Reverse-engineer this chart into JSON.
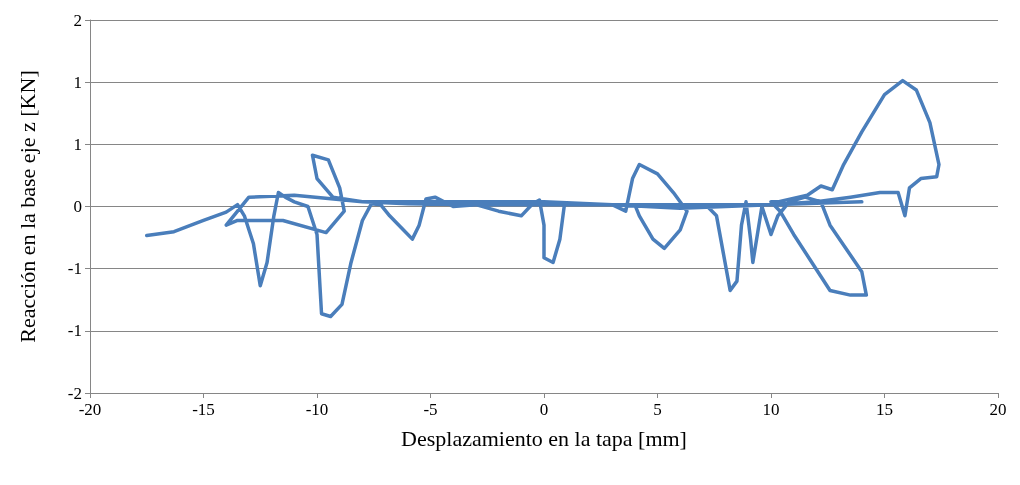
{
  "chart_data": {
    "type": "line",
    "xlabel": "Desplazamiento en la tapa [mm]",
    "ylabel": "Reacción en la base eje z [KN]",
    "xlim": [
      -20,
      20
    ],
    "xticks": [
      -20,
      -15,
      -10,
      -5,
      0,
      5,
      10,
      15,
      20
    ],
    "ylim": [
      -2,
      2
    ],
    "yticks": [
      {
        "value": -2,
        "label": "-2"
      },
      {
        "value": -1.333,
        "label": "-1"
      },
      {
        "value": -0.667,
        "label": "-1"
      },
      {
        "value": 0,
        "label": "0"
      },
      {
        "value": 0.667,
        "label": "1"
      },
      {
        "value": 1.333,
        "label": "1"
      },
      {
        "value": 2,
        "label": "2"
      }
    ],
    "grid": "y",
    "marker": "none",
    "line_style": "solid",
    "series": [
      {
        "color": "#4a7ebb",
        "x": [
          -17.5,
          -16.3,
          -15,
          -14,
          -13.5,
          -13.2,
          -12.8,
          -12.5,
          -12.2,
          -11.9,
          -11.7,
          -11.4,
          -11,
          -10.4,
          -10,
          -9.8,
          -9.4,
          -8.9,
          -8.5,
          -8,
          -7.6,
          -7.2,
          -6.8,
          -6.2,
          -5.8,
          -5.5,
          -5.2,
          -4.8,
          -4,
          -3,
          -2,
          -1,
          -0.5,
          -0.2,
          0,
          0,
          0.4,
          0.7,
          0.9,
          1.5,
          3,
          3.6,
          3.9,
          4.2,
          5,
          5.7,
          6.3,
          6,
          5.3,
          4.8,
          4.2,
          4,
          5,
          6.5,
          7.2,
          7.6,
          7.9,
          8.2,
          8.5,
          8.7,
          8.9,
          9.1,
          9.2,
          9.4,
          9.6,
          10,
          10.3,
          10.8,
          11.5,
          12.2,
          12.6,
          13.3,
          14,
          14.2,
          13.5,
          12.6,
          11.8,
          11,
          10.4,
          10,
          10.3,
          11.6,
          12.2,
          12.7,
          13.2,
          14,
          15,
          15.8,
          16.4,
          17,
          17.4,
          17.3,
          16.6,
          16.1,
          15.9,
          15.6,
          14.8,
          13.5,
          12,
          10,
          8,
          6,
          3,
          0,
          -3,
          -6,
          -8,
          -9.3,
          -10,
          -10.2,
          -9.5,
          -9,
          -8.8,
          -9.6,
          -11.5,
          -13.5,
          -14,
          -13,
          -11,
          -8,
          -6,
          -3,
          0,
          5,
          10,
          14
        ],
        "values": [
          -0.31,
          -0.27,
          -0.15,
          -0.06,
          0.02,
          -0.1,
          -0.4,
          -0.85,
          -0.6,
          -0.1,
          0.15,
          0.1,
          0.05,
          0,
          -0.3,
          -1.15,
          -1.18,
          -1.05,
          -0.6,
          -0.15,
          0.03,
          0.02,
          -0.1,
          -0.25,
          -0.35,
          -0.2,
          0.08,
          0.1,
          0,
          0.02,
          -0.05,
          -0.1,
          0.03,
          0.07,
          -0.2,
          -0.55,
          -0.6,
          -0.35,
          0.02,
          0.02,
          0.02,
          -0.05,
          0.3,
          0.45,
          0.35,
          0.15,
          -0.05,
          -0.25,
          -0.45,
          -0.35,
          -0.1,
          0.02,
          0,
          0,
          0,
          -0.1,
          -0.5,
          -0.9,
          -0.8,
          -0.2,
          0.05,
          -0.35,
          -0.6,
          -0.3,
          0,
          -0.3,
          -0.1,
          0.05,
          0.1,
          0.05,
          -0.2,
          -0.45,
          -0.7,
          -0.95,
          -0.95,
          -0.9,
          -0.6,
          -0.3,
          -0.05,
          0.05,
          0.05,
          0.12,
          0.22,
          0.18,
          0.45,
          0.8,
          1.2,
          1.35,
          1.25,
          0.9,
          0.45,
          0.32,
          0.3,
          0.2,
          -0.1,
          0.15,
          0.15,
          0.1,
          0.05,
          0.02,
          0,
          -0.02,
          0.02,
          0.05,
          0.05,
          0.05,
          0.05,
          0.1,
          0.3,
          0.55,
          0.5,
          0.2,
          -0.05,
          -0.28,
          -0.15,
          -0.15,
          -0.2,
          0.1,
          0.12,
          0.05,
          0.03,
          0.02,
          0.02,
          0.02,
          0.02,
          0.05
        ]
      }
    ]
  }
}
